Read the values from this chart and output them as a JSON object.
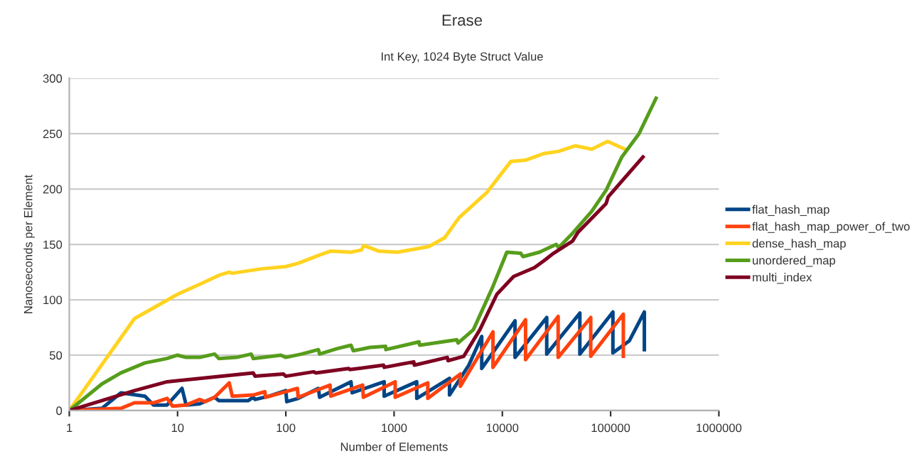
{
  "chart_data": {
    "type": "line",
    "title": "Erase",
    "subtitle": "Int Key, 1024 Byte Struct Value",
    "xlabel": "Number of Elements",
    "ylabel": "Nanoseconds per Element",
    "log": "x",
    "xlim": [
      1,
      1000000
    ],
    "xticks": [
      1,
      10,
      100,
      1000,
      10000,
      100000,
      1000000
    ],
    "ylim": [
      0,
      300
    ],
    "yticks": [
      0,
      50,
      100,
      150,
      200,
      250,
      300
    ],
    "grid": "y",
    "legend": "right",
    "marker": "none",
    "line_style": "solid",
    "series": [
      {
        "name": "flat_hash_map",
        "color": "#004586",
        "x": [
          1,
          2,
          3,
          5,
          6,
          8,
          11,
          12,
          16,
          22,
          24,
          45,
          50,
          52,
          70,
          100,
          102,
          130,
          200,
          205,
          400,
          410,
          810,
          810,
          1620,
          1620,
          3250,
          3250,
          4900,
          6450,
          6450,
          13100,
          13100,
          25700,
          25700,
          52000,
          52000,
          105000,
          105000,
          149000,
          205000,
          205000
        ],
        "values": [
          0,
          2,
          16,
          13,
          5,
          5,
          20,
          5,
          6,
          12,
          9,
          9,
          12,
          10,
          13,
          18,
          8,
          11,
          20,
          12,
          26,
          16,
          26,
          13,
          26,
          11,
          29,
          14,
          41,
          67,
          38,
          81,
          48,
          84,
          51,
          88,
          51,
          89,
          52,
          63,
          89,
          55
        ]
      },
      {
        "name": "flat_hash_map_power_of_two",
        "color": "#ff420e",
        "x": [
          1,
          3,
          4,
          6,
          8,
          9,
          12,
          16,
          18,
          22,
          30,
          32,
          50,
          64,
          65,
          100,
          128,
          130,
          256,
          260,
          512,
          520,
          1024,
          1024,
          2048,
          2048,
          4096,
          4096,
          8192,
          8192,
          16384,
          16384,
          32768,
          32768,
          65536,
          65536,
          131072,
          131072
        ],
        "values": [
          0,
          2,
          7,
          7,
          11,
          4,
          5,
          10,
          8,
          12,
          25,
          13,
          14,
          17,
          12,
          17,
          20,
          12,
          23,
          13,
          23,
          12,
          26,
          12,
          25,
          11,
          33,
          22,
          71,
          39,
          82,
          46,
          85,
          48,
          84,
          49,
          87,
          49
        ]
      },
      {
        "name": "dense_hash_map",
        "color": "#ffd320",
        "x": [
          1,
          4,
          10,
          16,
          24,
          30,
          32,
          60,
          100,
          130,
          200,
          260,
          400,
          500,
          525,
          719,
          1075,
          2080,
          2930,
          3970,
          7200,
          12000,
          16300,
          24000,
          33000,
          47000,
          67000,
          94000,
          135000
        ],
        "values": [
          0,
          83,
          105,
          114,
          122,
          125,
          124,
          128,
          130,
          133,
          140,
          144,
          143,
          145,
          149,
          144,
          143,
          148,
          156,
          174,
          197,
          225,
          226,
          232,
          234,
          239,
          236,
          243,
          236
        ]
      },
      {
        "name": "unordered_map",
        "color": "#579d1c",
        "x": [
          1,
          2,
          3,
          5,
          8,
          10,
          12,
          16,
          22,
          24,
          35,
          48,
          50,
          90,
          100,
          140,
          200,
          205,
          300,
          400,
          420,
          600,
          835,
          840,
          1700,
          1720,
          3800,
          3900,
          5400,
          8100,
          11000,
          14800,
          15500,
          22000,
          31500,
          33000,
          44500,
          67000,
          91000,
          127000,
          183000,
          263000
        ],
        "values": [
          0,
          24,
          34,
          43,
          47,
          50,
          48,
          48,
          51,
          47,
          48,
          51,
          47,
          50,
          48,
          51,
          55,
          51,
          56,
          59,
          54,
          57,
          58,
          55,
          62,
          59,
          64,
          61,
          73,
          111,
          143,
          142,
          139,
          143,
          150,
          147,
          160,
          180,
          199,
          229,
          250,
          282
        ]
      },
      {
        "name": "multi_index",
        "color": "#7e0021",
        "x": [
          1,
          4,
          8,
          16,
          50,
          52,
          95,
          100,
          180,
          190,
          380,
          390,
          800,
          810,
          1520,
          1540,
          3100,
          3150,
          4400,
          6200,
          8900,
          12700,
          19800,
          24000,
          29700,
          44500,
          50000,
          91000,
          95000,
          199000
        ],
        "values": [
          0,
          18,
          26,
          29,
          34,
          31,
          33,
          31,
          35,
          34,
          38,
          37,
          41,
          39,
          44,
          41,
          48,
          45,
          49,
          73,
          105,
          121,
          129,
          135,
          142,
          153,
          161,
          187,
          193,
          229
        ]
      }
    ]
  }
}
